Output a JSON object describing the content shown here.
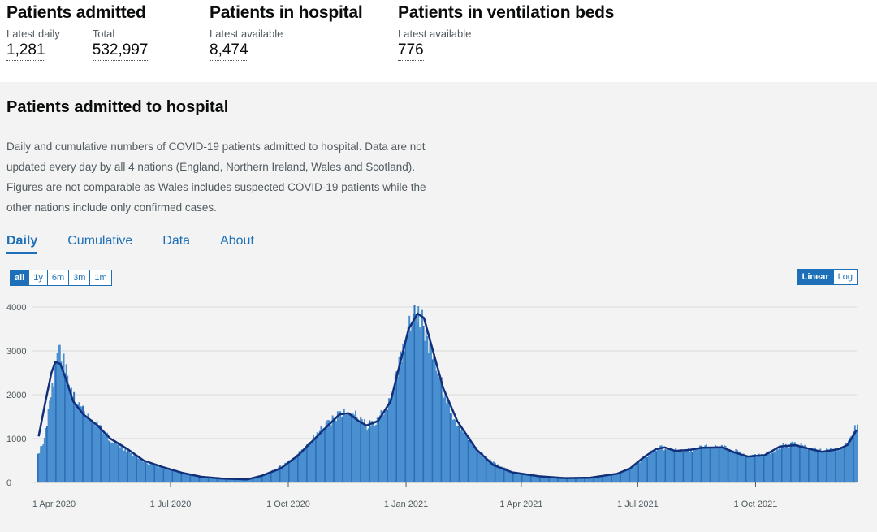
{
  "headline": [
    {
      "title": "Patients admitted",
      "metrics": [
        {
          "label": "Latest daily",
          "value": "1,281"
        },
        {
          "label": "Total",
          "value": "532,997"
        }
      ]
    },
    {
      "title": "Patients in hospital",
      "metrics": [
        {
          "label": "Latest available",
          "value": "8,474"
        }
      ]
    },
    {
      "title": "Patients in ventilation beds",
      "metrics": [
        {
          "label": "Latest available",
          "value": "776"
        }
      ]
    }
  ],
  "card": {
    "title": "Patients admitted to hospital",
    "description": "Daily and cumulative numbers of COVID-19 patients admitted to hospital. Data are not updated every day by all 4 nations (England, Northern Ireland, Wales and Scotland). Figures are not comparable as Wales includes suspected COVID-19 patients while the other nations include only confirmed cases.",
    "tabs": [
      "Daily",
      "Cumulative",
      "Data",
      "About"
    ],
    "active_tab": "Daily",
    "range_buttons": [
      "all",
      "1y",
      "6m",
      "3m",
      "1m"
    ],
    "selected_range": "all",
    "scale_buttons": [
      "Linear",
      "Log"
    ],
    "selected_scale": "Linear"
  },
  "colors": {
    "bars": "#4a90d0",
    "bar_dark": "#2d6eb8",
    "line": "#12307a",
    "accent": "#1d70b8"
  },
  "chart_data": {
    "type": "bar",
    "title": "",
    "xlabel": "",
    "ylabel": "",
    "ylim": [
      0,
      4000
    ],
    "yticks": [
      "0",
      "1000",
      "2000",
      "3000",
      "4000"
    ],
    "grid": true,
    "x_range": [
      "2020-03-19",
      "2021-12-19"
    ],
    "xticks": [
      {
        "date": "2020-04-01",
        "label": "1 Apr 2020"
      },
      {
        "date": "2020-07-01",
        "label": "1 Jul 2020"
      },
      {
        "date": "2020-10-01",
        "label": "1 Oct 2020"
      },
      {
        "date": "2021-01-01",
        "label": "1 Jan 2021"
      },
      {
        "date": "2021-04-01",
        "label": "1 Apr 2021"
      },
      {
        "date": "2021-07-01",
        "label": "1 Jul 2021"
      },
      {
        "date": "2021-10-01",
        "label": "1 Oct 2021"
      }
    ],
    "series": [
      {
        "type": "bar",
        "points": [
          [
            "2020-03-19",
            650
          ],
          [
            "2020-03-24",
            950
          ],
          [
            "2020-03-29",
            1950
          ],
          [
            "2020-04-02",
            2750
          ],
          [
            "2020-04-05",
            3000
          ],
          [
            "2020-04-09",
            2650
          ],
          [
            "2020-04-14",
            2150
          ],
          [
            "2020-04-19",
            1800
          ],
          [
            "2020-04-26",
            1550
          ],
          [
            "2020-05-05",
            1300
          ],
          [
            "2020-05-15",
            950
          ],
          [
            "2020-05-29",
            700
          ],
          [
            "2020-06-10",
            480
          ],
          [
            "2020-06-25",
            330
          ],
          [
            "2020-07-10",
            220
          ],
          [
            "2020-07-25",
            130
          ],
          [
            "2020-08-10",
            90
          ],
          [
            "2020-08-25",
            70
          ],
          [
            "2020-09-05",
            110
          ],
          [
            "2020-09-15",
            220
          ],
          [
            "2020-09-28",
            420
          ],
          [
            "2020-10-10",
            700
          ],
          [
            "2020-10-20",
            1000
          ],
          [
            "2020-10-31",
            1350
          ],
          [
            "2020-11-10",
            1550
          ],
          [
            "2020-11-17",
            1640
          ],
          [
            "2020-11-25",
            1450
          ],
          [
            "2020-12-01",
            1300
          ],
          [
            "2020-12-10",
            1450
          ],
          [
            "2020-12-20",
            1950
          ],
          [
            "2020-12-28",
            2900
          ],
          [
            "2021-01-03",
            3600
          ],
          [
            "2021-01-08",
            4000
          ],
          [
            "2021-01-13",
            3700
          ],
          [
            "2021-01-20",
            3000
          ],
          [
            "2021-01-28",
            2250
          ],
          [
            "2021-02-05",
            1500
          ],
          [
            "2021-02-15",
            1100
          ],
          [
            "2021-02-28",
            650
          ],
          [
            "2021-03-15",
            350
          ],
          [
            "2021-03-28",
            220
          ],
          [
            "2021-04-15",
            140
          ],
          [
            "2021-05-05",
            90
          ],
          [
            "2021-05-25",
            110
          ],
          [
            "2021-06-15",
            200
          ],
          [
            "2021-06-27",
            380
          ],
          [
            "2021-07-07",
            600
          ],
          [
            "2021-07-17",
            800
          ],
          [
            "2021-07-27",
            760
          ],
          [
            "2021-08-06",
            720
          ],
          [
            "2021-08-20",
            800
          ],
          [
            "2021-09-05",
            820
          ],
          [
            "2021-09-15",
            700
          ],
          [
            "2021-09-25",
            590
          ],
          [
            "2021-10-08",
            620
          ],
          [
            "2021-10-20",
            820
          ],
          [
            "2021-11-01",
            880
          ],
          [
            "2021-11-10",
            800
          ],
          [
            "2021-11-22",
            720
          ],
          [
            "2021-12-05",
            780
          ],
          [
            "2021-12-12",
            900
          ],
          [
            "2021-12-16",
            1200
          ],
          [
            "2021-12-19",
            1250
          ]
        ]
      },
      {
        "type": "line",
        "points": [
          [
            "2020-03-20",
            1050
          ],
          [
            "2020-03-25",
            1800
          ],
          [
            "2020-03-30",
            2500
          ],
          [
            "2020-04-02",
            2750
          ],
          [
            "2020-04-06",
            2700
          ],
          [
            "2020-04-11",
            2300
          ],
          [
            "2020-04-16",
            1850
          ],
          [
            "2020-04-24",
            1550
          ],
          [
            "2020-05-05",
            1300
          ],
          [
            "2020-05-15",
            1000
          ],
          [
            "2020-05-29",
            750
          ],
          [
            "2020-06-10",
            500
          ],
          [
            "2020-06-25",
            350
          ],
          [
            "2020-07-10",
            220
          ],
          [
            "2020-07-25",
            130
          ],
          [
            "2020-08-10",
            90
          ],
          [
            "2020-08-30",
            70
          ],
          [
            "2020-09-10",
            150
          ],
          [
            "2020-09-25",
            320
          ],
          [
            "2020-10-08",
            600
          ],
          [
            "2020-10-20",
            950
          ],
          [
            "2020-11-01",
            1300
          ],
          [
            "2020-11-10",
            1550
          ],
          [
            "2020-11-17",
            1580
          ],
          [
            "2020-11-25",
            1400
          ],
          [
            "2020-12-01",
            1300
          ],
          [
            "2020-12-10",
            1400
          ],
          [
            "2020-12-20",
            1850
          ],
          [
            "2020-12-28",
            2800
          ],
          [
            "2021-01-03",
            3500
          ],
          [
            "2021-01-10",
            3850
          ],
          [
            "2021-01-15",
            3750
          ],
          [
            "2021-01-22",
            3000
          ],
          [
            "2021-01-30",
            2150
          ],
          [
            "2021-02-10",
            1400
          ],
          [
            "2021-02-25",
            750
          ],
          [
            "2021-03-10",
            400
          ],
          [
            "2021-03-25",
            230
          ],
          [
            "2021-04-15",
            140
          ],
          [
            "2021-05-05",
            100
          ],
          [
            "2021-05-25",
            110
          ],
          [
            "2021-06-15",
            200
          ],
          [
            "2021-06-25",
            320
          ],
          [
            "2021-07-05",
            560
          ],
          [
            "2021-07-15",
            760
          ],
          [
            "2021-07-22",
            800
          ],
          [
            "2021-07-30",
            720
          ],
          [
            "2021-08-10",
            740
          ],
          [
            "2021-08-20",
            790
          ],
          [
            "2021-09-05",
            800
          ],
          [
            "2021-09-15",
            680
          ],
          [
            "2021-09-25",
            590
          ],
          [
            "2021-10-08",
            620
          ],
          [
            "2021-10-20",
            820
          ],
          [
            "2021-11-01",
            850
          ],
          [
            "2021-11-10",
            780
          ],
          [
            "2021-11-22",
            700
          ],
          [
            "2021-12-05",
            760
          ],
          [
            "2021-12-12",
            860
          ],
          [
            "2021-12-19",
            1200
          ]
        ]
      }
    ]
  }
}
